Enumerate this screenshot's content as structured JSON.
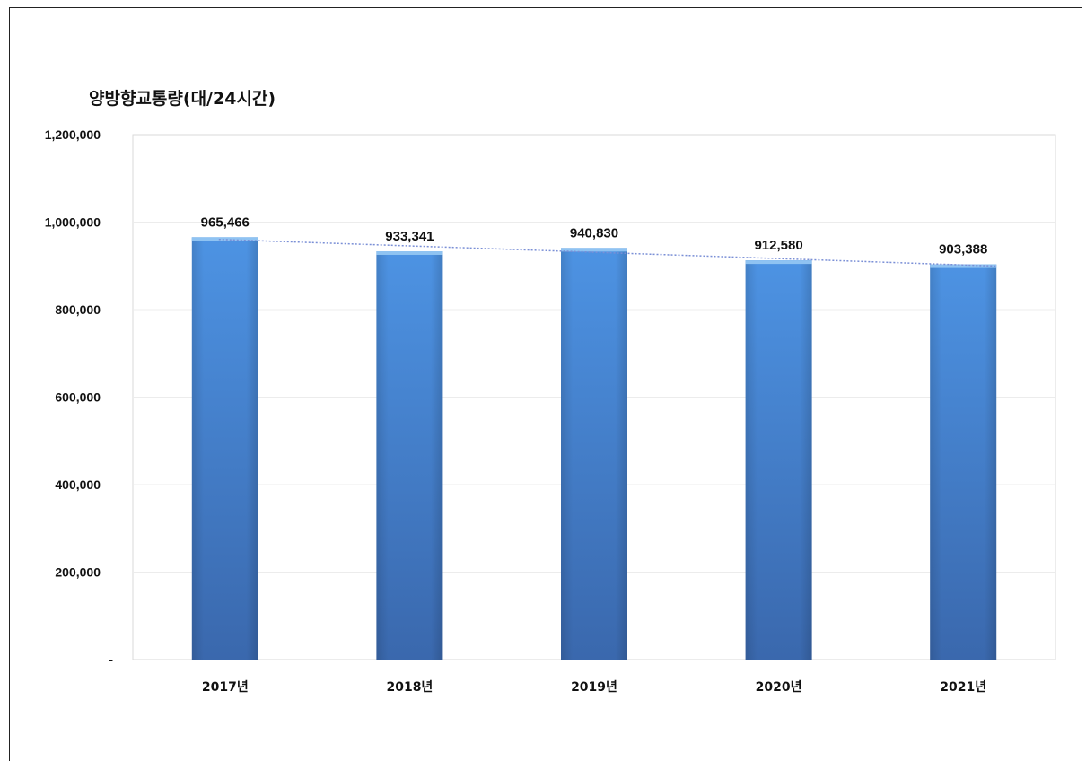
{
  "chart_data": {
    "type": "bar",
    "title": "양방향교통량(대/24시간)",
    "categories": [
      "2017년",
      "2018년",
      "2019년",
      "2020년",
      "2021년"
    ],
    "values": [
      965466,
      933341,
      940830,
      912580,
      903388
    ],
    "data_labels": [
      "965,466",
      "933,341",
      "940,830",
      "912,580",
      "903,388"
    ],
    "ylim": [
      0,
      1200000
    ],
    "yticks": [
      0,
      200000,
      400000,
      600000,
      800000,
      1000000,
      1200000
    ],
    "ytick_labels": [
      "-",
      "200,000",
      "400,000",
      "600,000",
      "800,000",
      "1,000,000",
      "1,200,000"
    ],
    "trendline": "linear, dotted",
    "grid": true,
    "colors": {
      "bar_light": "#4d93e3",
      "bar_dark": "#3a68ad",
      "bar_top": "#8fc3f2",
      "trendline": "#7a8fd6",
      "grid": "#ececec",
      "plot_border": "#d9d9d9"
    }
  }
}
